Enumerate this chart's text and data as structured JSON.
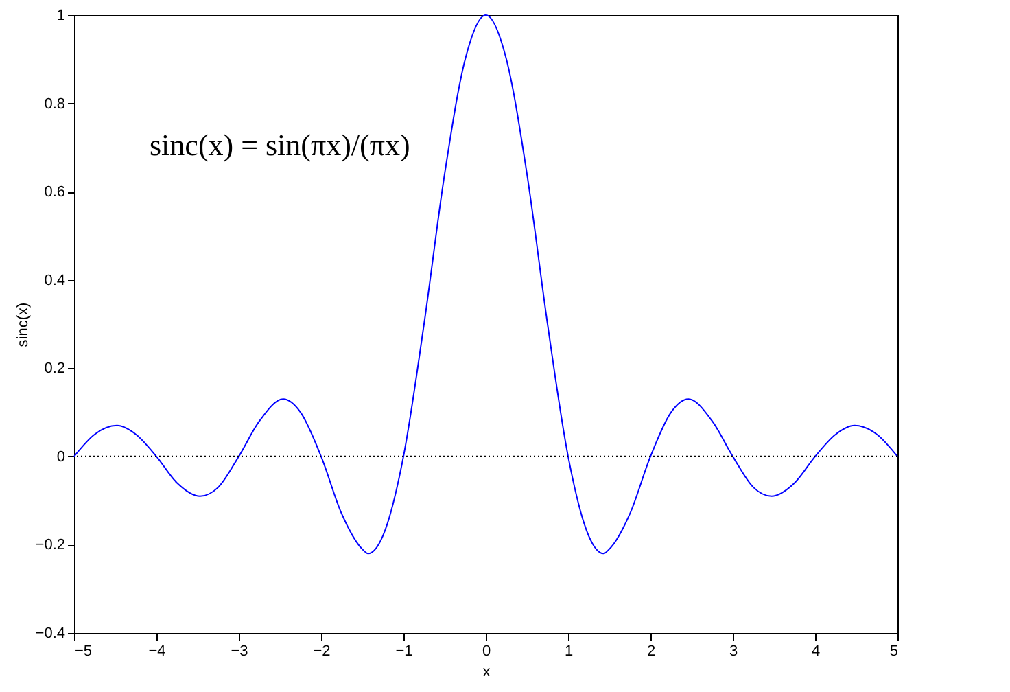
{
  "chart_data": {
    "type": "line",
    "xlabel": "x",
    "ylabel": "sinc(x)",
    "x": [
      -5,
      -4.75,
      -4.48,
      -4.25,
      -4,
      -3.75,
      -3.47,
      -3.25,
      -3,
      -2.75,
      -2.46,
      -2.25,
      -2,
      -1.75,
      -1.5,
      -1.43,
      -1.25,
      -1,
      -0.75,
      -0.5,
      -0.25,
      0,
      0.25,
      0.5,
      0.75,
      1,
      1.25,
      1.43,
      1.5,
      1.75,
      2,
      2.25,
      2.46,
      2.75,
      3,
      3.25,
      3.47,
      3.75,
      4,
      4.25,
      4.48,
      4.75,
      5
    ],
    "series": [
      {
        "color": "#0000ff",
        "values": [
          0,
          0.05,
          0.07,
          0.05,
          0,
          -0.06,
          -0.09,
          -0.07,
          0,
          0.08,
          0.13,
          0.1,
          0,
          -0.13,
          -0.21,
          -0.22,
          -0.18,
          0,
          0.3,
          0.64,
          0.9,
          1,
          0.9,
          0.64,
          0.3,
          0,
          -0.18,
          -0.22,
          -0.21,
          -0.13,
          0,
          0.1,
          0.13,
          0.08,
          0,
          -0.07,
          -0.09,
          -0.06,
          0,
          0.05,
          0.07,
          0.05,
          0
        ]
      }
    ],
    "xlim": [
      -5,
      5
    ],
    "xticks": [
      -5,
      -4,
      -3,
      -2,
      -1,
      0,
      1,
      2,
      3,
      4,
      5
    ],
    "ylim": [
      -0.4,
      1
    ],
    "yticks": [
      -0.4,
      -0.2,
      0,
      0.2,
      0.4,
      0.6,
      0.8,
      1
    ],
    "ref_lines": [
      {
        "axis": "y",
        "value": 0,
        "color": "#000000",
        "line_style": "dotted"
      }
    ],
    "annotations": [
      "sinc(x) = sin(πx)/(πx)"
    ],
    "grid": false,
    "marker": "none",
    "line_style": "solid"
  }
}
